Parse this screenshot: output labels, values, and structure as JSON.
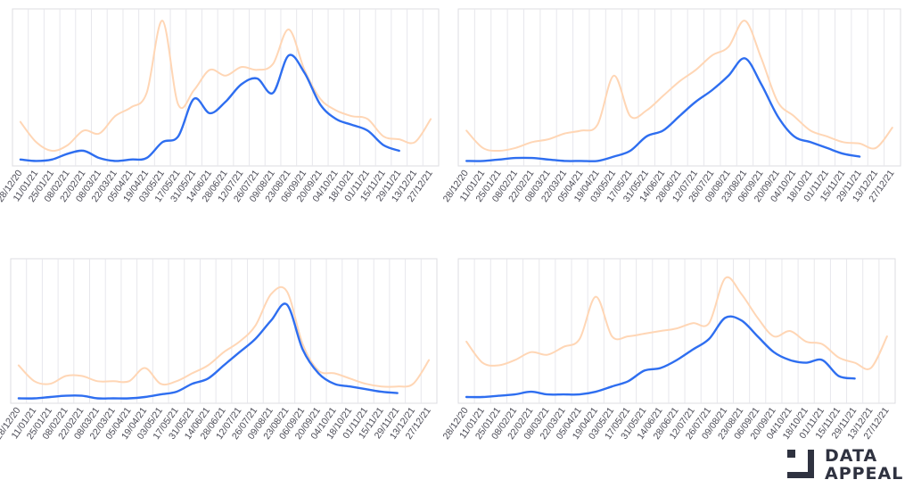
{
  "logo": {
    "line1": "DATA",
    "line2": "APPEAL",
    "color": "#2f3240"
  },
  "colors": {
    "dark_series": "#2e6ef0",
    "light_series": "#ffd6b5",
    "grid": "#e7e7ec",
    "frame": "#dcdce2",
    "tick": "#4a4a55"
  },
  "chart_data": [
    {
      "type": "line",
      "x": [
        "28/12/20",
        "11/01/21",
        "25/01/21",
        "08/02/21",
        "22/02/21",
        "08/03/21",
        "22/03/21",
        "05/04/21",
        "19/04/21",
        "03/05/21",
        "17/05/21",
        "31/05/21",
        "14/06/21",
        "28/06/21",
        "12/07/21",
        "26/07/21",
        "09/08/21",
        "23/08/21",
        "06/09/21",
        "20/09/21",
        "04/10/21",
        "18/10/21",
        "01/11/21",
        "15/11/21",
        "29/11/21",
        "13/12/21",
        "27/12/21"
      ],
      "series": [
        {
          "values": [
            28,
            14,
            8,
            12,
            22,
            20,
            32,
            38,
            48,
            98,
            40,
            50,
            64,
            60,
            66,
            64,
            68,
            92,
            64,
            44,
            36,
            32,
            30,
            18,
            16,
            14,
            30
          ]
        },
        {
          "values": [
            2,
            1,
            2,
            6,
            8,
            3,
            1,
            2,
            3,
            14,
            18,
            44,
            34,
            42,
            54,
            58,
            48,
            74,
            62,
            40,
            30,
            26,
            22,
            12,
            8,
            null,
            null
          ]
        }
      ],
      "ylim": [
        0,
        100
      ]
    },
    {
      "type": "line",
      "x": [
        "28/12/20",
        "11/01/21",
        "25/01/21",
        "08/02/21",
        "22/02/21",
        "08/03/21",
        "22/03/21",
        "05/04/21",
        "19/04/21",
        "03/05/21",
        "17/05/21",
        "31/05/21",
        "14/06/21",
        "28/06/21",
        "12/07/21",
        "26/07/21",
        "09/08/21",
        "23/08/21",
        "06/09/21",
        "20/09/21",
        "04/10/21",
        "18/10/21",
        "01/11/21",
        "15/11/21",
        "29/11/21",
        "13/12/21",
        "27/12/21"
      ],
      "series": [
        {
          "values": [
            22,
            10,
            8,
            10,
            14,
            16,
            20,
            22,
            26,
            60,
            32,
            36,
            46,
            56,
            64,
            74,
            80,
            98,
            72,
            42,
            32,
            22,
            18,
            14,
            13,
            10,
            24
          ]
        },
        {
          "values": [
            1,
            1,
            2,
            3,
            3,
            2,
            1,
            1,
            1,
            4,
            8,
            18,
            22,
            32,
            42,
            50,
            60,
            72,
            54,
            32,
            18,
            14,
            10,
            6,
            4,
            null,
            null
          ]
        }
      ],
      "ylim": [
        0,
        100
      ]
    },
    {
      "type": "line",
      "x": [
        "28/12/20",
        "11/01/21",
        "25/01/21",
        "08/02/21",
        "22/02/21",
        "08/03/21",
        "22/03/21",
        "05/04/21",
        "19/04/21",
        "03/05/21",
        "17/05/21",
        "31/05/21",
        "14/06/21",
        "28/06/21",
        "12/07/21",
        "26/07/21",
        "09/08/21",
        "23/08/21",
        "06/09/21",
        "20/09/21",
        "04/10/21",
        "18/10/21",
        "01/11/21",
        "15/11/21",
        "29/11/21",
        "13/12/21",
        "27/12/21"
      ],
      "series": [
        {
          "values": [
            26,
            14,
            12,
            18,
            18,
            14,
            14,
            14,
            24,
            12,
            14,
            20,
            26,
            36,
            44,
            56,
            80,
            82,
            42,
            22,
            20,
            16,
            12,
            10,
            10,
            12,
            30
          ]
        },
        {
          "values": [
            1,
            1,
            2,
            3,
            3,
            1,
            1,
            1,
            2,
            4,
            6,
            12,
            16,
            26,
            36,
            46,
            60,
            72,
            38,
            20,
            12,
            10,
            8,
            6,
            5,
            null,
            null
          ]
        }
      ],
      "ylim": [
        0,
        100
      ]
    },
    {
      "type": "line",
      "x": [
        "28/12/20",
        "11/01/21",
        "25/01/21",
        "08/02/21",
        "22/02/21",
        "08/03/21",
        "22/03/21",
        "05/04/21",
        "19/04/21",
        "03/05/21",
        "17/05/21",
        "31/05/21",
        "14/06/21",
        "28/06/21",
        "12/07/21",
        "26/07/21",
        "09/08/21",
        "23/08/21",
        "06/09/21",
        "20/09/21",
        "04/10/21",
        "18/10/21",
        "01/11/21",
        "15/11/21",
        "29/11/21",
        "13/12/21",
        "27/12/21"
      ],
      "series": [
        {
          "values": [
            44,
            28,
            26,
            30,
            36,
            34,
            40,
            46,
            78,
            48,
            48,
            50,
            52,
            54,
            58,
            58,
            92,
            80,
            62,
            48,
            52,
            44,
            42,
            32,
            28,
            24,
            48
          ]
        },
        {
          "values": [
            2,
            2,
            3,
            4,
            6,
            4,
            4,
            4,
            6,
            10,
            14,
            22,
            24,
            30,
            38,
            46,
            62,
            60,
            48,
            36,
            30,
            28,
            30,
            18,
            16,
            null,
            null
          ]
        }
      ],
      "ylim": [
        0,
        100
      ]
    }
  ]
}
